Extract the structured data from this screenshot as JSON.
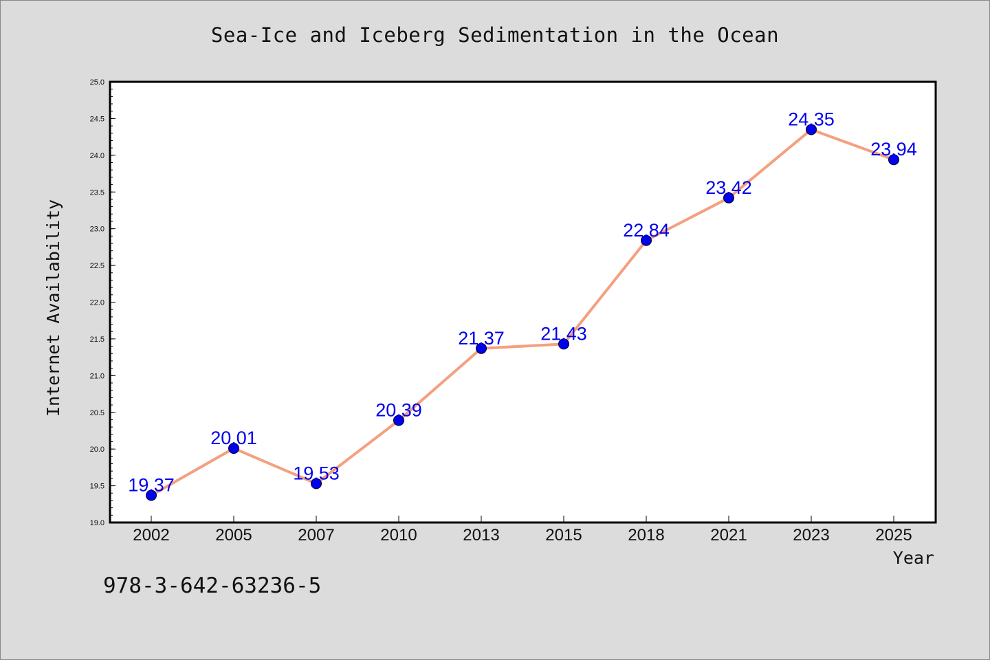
{
  "title": "Sea-Ice and Iceberg Sedimentation in the Ocean",
  "footer_code": "978-3-642-63236-5",
  "chart_data": {
    "type": "line",
    "title": "Sea-Ice and Iceberg Sedimentation in the Ocean",
    "xlabel": "Year",
    "ylabel": "Internet Availability",
    "categories": [
      "2002",
      "2005",
      "2007",
      "2010",
      "2013",
      "2015",
      "2018",
      "2021",
      "2023",
      "2025"
    ],
    "values": [
      19.37,
      20.01,
      19.53,
      20.39,
      21.37,
      21.43,
      22.84,
      23.42,
      24.35,
      23.94
    ],
    "data_labels": [
      "19.37",
      "20.01",
      "19.53",
      "20.39",
      "21.37",
      "21.43",
      "22.84",
      "23.42",
      "24.35",
      "23.94"
    ],
    "ylim": [
      19.0,
      25.0
    ],
    "yticks": [
      "19.0",
      "19.5",
      "20.0",
      "20.5",
      "21.0",
      "21.5",
      "22.0",
      "22.5",
      "23.0",
      "23.5",
      "24.0",
      "24.5",
      "25.0"
    ],
    "grid": false,
    "legend": "none",
    "line_color": "#f4a07f",
    "marker_color": "#0000ee",
    "label_color": "#0000ee",
    "background": "#dcdcdc",
    "plot_background": "#ffffff"
  }
}
